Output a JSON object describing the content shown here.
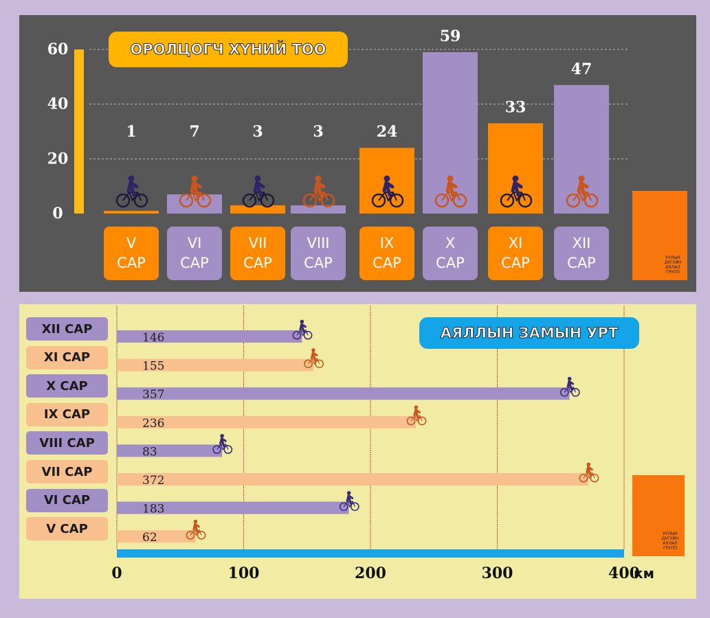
{
  "logo_text": "УУЛЫН ДУГУЙН АЯЛАЛ ГРУПП",
  "chart_data": [
    {
      "type": "bar",
      "title": "ОРОЛЦОГЧ ХҮНИЙ ТОО",
      "categories": [
        "V САР",
        "VI САР",
        "VII САР",
        "VIII САР",
        "IX САР",
        "X САР",
        "XI САР",
        "XII САР"
      ],
      "values": [
        1,
        7,
        3,
        3,
        24,
        59,
        33,
        47
      ],
      "colors": [
        "#ff8a00",
        "#a28fc6",
        "#ff8a00",
        "#a28fc6",
        "#ff8a00",
        "#a28fc6",
        "#ff8a00",
        "#a28fc6"
      ],
      "ylim": [
        0,
        60
      ],
      "yticks": [
        0,
        20,
        40,
        60
      ],
      "grid": true
    },
    {
      "type": "hbar",
      "title": "АЯЛЛЫН ЗАМЫН УРТ",
      "categories": [
        "XII САР",
        "XI САР",
        "X САР",
        "IX САР",
        "VIII САР",
        "VII САР",
        "VI САР",
        "V САР"
      ],
      "values": [
        146,
        155,
        357,
        236,
        83,
        372,
        183,
        62
      ],
      "colors": [
        "#a28fc6",
        "#f8c08e",
        "#a28fc6",
        "#f8c08e",
        "#a28fc6",
        "#f8c08e",
        "#a28fc6",
        "#f8c08e"
      ],
      "xlim": [
        0,
        400
      ],
      "xticks": [
        0,
        100,
        200,
        300,
        400
      ],
      "x_label": "км",
      "grid": true
    }
  ]
}
